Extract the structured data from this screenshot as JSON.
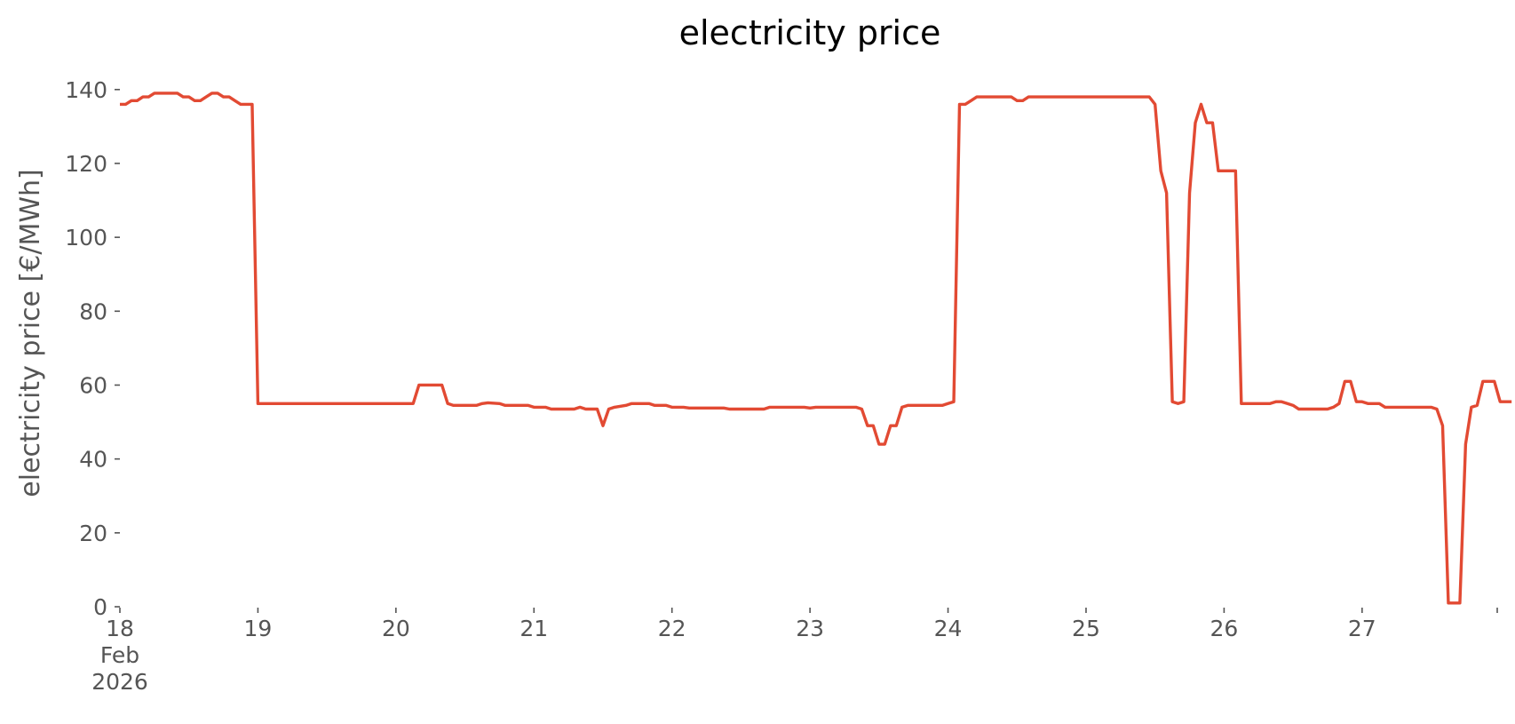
{
  "chart_data": {
    "type": "line",
    "title": "electricity price",
    "xlabel": "",
    "ylabel": "electricity price [€/MWh]",
    "ylim": [
      0,
      145
    ],
    "yticks": [
      0,
      20,
      40,
      60,
      80,
      100,
      120,
      140
    ],
    "xlim": [
      0,
      239.5
    ],
    "x_unit": "hours from 2026-02-18 00:00",
    "xticks": [
      {
        "x": 0,
        "lines": [
          "18",
          "Feb",
          "2026"
        ]
      },
      {
        "x": 24,
        "lines": [
          "19"
        ]
      },
      {
        "x": 48,
        "lines": [
          "20"
        ]
      },
      {
        "x": 72,
        "lines": [
          "21"
        ]
      },
      {
        "x": 96,
        "lines": [
          "22"
        ]
      },
      {
        "x": 120,
        "lines": [
          "23"
        ]
      },
      {
        "x": 144,
        "lines": [
          "24"
        ]
      },
      {
        "x": 168,
        "lines": [
          "25"
        ]
      },
      {
        "x": 192,
        "lines": [
          "26"
        ]
      },
      {
        "x": 216,
        "lines": [
          "27"
        ]
      }
    ],
    "grid": false,
    "series": [
      {
        "name": "",
        "color": "#e24a33",
        "points": [
          [
            0,
            136
          ],
          [
            1,
            136
          ],
          [
            2,
            137
          ],
          [
            3,
            137
          ],
          [
            4,
            138
          ],
          [
            5,
            138
          ],
          [
            6,
            139
          ],
          [
            7,
            139
          ],
          [
            8,
            139
          ],
          [
            9,
            139
          ],
          [
            10,
            139
          ],
          [
            11,
            138
          ],
          [
            12,
            138
          ],
          [
            13,
            137
          ],
          [
            14,
            137
          ],
          [
            15,
            138
          ],
          [
            16,
            139
          ],
          [
            17,
            139
          ],
          [
            18,
            138
          ],
          [
            19,
            138
          ],
          [
            20,
            137
          ],
          [
            21,
            136
          ],
          [
            22,
            136
          ],
          [
            23,
            136
          ],
          [
            24,
            55
          ],
          [
            30,
            55
          ],
          [
            40,
            55
          ],
          [
            50,
            55
          ],
          [
            51,
            55
          ],
          [
            52,
            60
          ],
          [
            56,
            60
          ],
          [
            57,
            55
          ],
          [
            58,
            54.5
          ],
          [
            62,
            54.5
          ],
          [
            63,
            55
          ],
          [
            64,
            55.2
          ],
          [
            66,
            55
          ],
          [
            67,
            54.5
          ],
          [
            71,
            54.5
          ],
          [
            72,
            54
          ],
          [
            74,
            54
          ],
          [
            75,
            53.5
          ],
          [
            79,
            53.5
          ],
          [
            80,
            54
          ],
          [
            81,
            53.5
          ],
          [
            83,
            53.5
          ],
          [
            84,
            49
          ],
          [
            85,
            53.5
          ],
          [
            86,
            54
          ],
          [
            88,
            54.5
          ],
          [
            89,
            55
          ],
          [
            92,
            55
          ],
          [
            93,
            54.5
          ],
          [
            95,
            54.5
          ],
          [
            96,
            54
          ],
          [
            98,
            54
          ],
          [
            99,
            53.8
          ],
          [
            105,
            53.8
          ],
          [
            106,
            53.5
          ],
          [
            112,
            53.5
          ],
          [
            113,
            54
          ],
          [
            119,
            54
          ],
          [
            120,
            53.8
          ],
          [
            121,
            54
          ],
          [
            128,
            54
          ],
          [
            129,
            53.5
          ],
          [
            130,
            49
          ],
          [
            131,
            49
          ],
          [
            132,
            44
          ],
          [
            133,
            44
          ],
          [
            134,
            49
          ],
          [
            135,
            49
          ],
          [
            136,
            54
          ],
          [
            137,
            54.5
          ],
          [
            143,
            54.5
          ],
          [
            144,
            55
          ],
          [
            145,
            55.5
          ],
          [
            146,
            136
          ],
          [
            147,
            136
          ],
          [
            148,
            137
          ],
          [
            149,
            138
          ],
          [
            155,
            138
          ],
          [
            156,
            137
          ],
          [
            157,
            137
          ],
          [
            158,
            138
          ],
          [
            170,
            138
          ],
          [
            178,
            138
          ],
          [
            179,
            138
          ],
          [
            180,
            136
          ],
          [
            181,
            118
          ],
          [
            182,
            112
          ],
          [
            183,
            55.5
          ],
          [
            184,
            55
          ],
          [
            185,
            55.5
          ],
          [
            186,
            112
          ],
          [
            187,
            131
          ],
          [
            188,
            136
          ],
          [
            189,
            131
          ],
          [
            190,
            131
          ],
          [
            191,
            118
          ],
          [
            194,
            118
          ],
          [
            195,
            55
          ],
          [
            200,
            55
          ],
          [
            201,
            55.5
          ],
          [
            202,
            55.5
          ],
          [
            203,
            55
          ],
          [
            204,
            54.5
          ],
          [
            205,
            53.5
          ],
          [
            210,
            53.5
          ],
          [
            211,
            54
          ],
          [
            212,
            55
          ],
          [
            213,
            61
          ],
          [
            214,
            61
          ],
          [
            215,
            55.5
          ],
          [
            216,
            55.5
          ],
          [
            217,
            55
          ],
          [
            219,
            55
          ],
          [
            220,
            54
          ],
          [
            228,
            54
          ],
          [
            229,
            53.5
          ],
          [
            230,
            49
          ],
          [
            231,
            1
          ],
          [
            232,
            1
          ],
          [
            233,
            1
          ],
          [
            234,
            44
          ],
          [
            235,
            54
          ],
          [
            236,
            54.5
          ],
          [
            237,
            61
          ],
          [
            238,
            61
          ],
          [
            239,
            61
          ],
          [
            240,
            55.5
          ],
          [
            241,
            55.5
          ],
          [
            242,
            55.5
          ]
        ]
      }
    ]
  }
}
